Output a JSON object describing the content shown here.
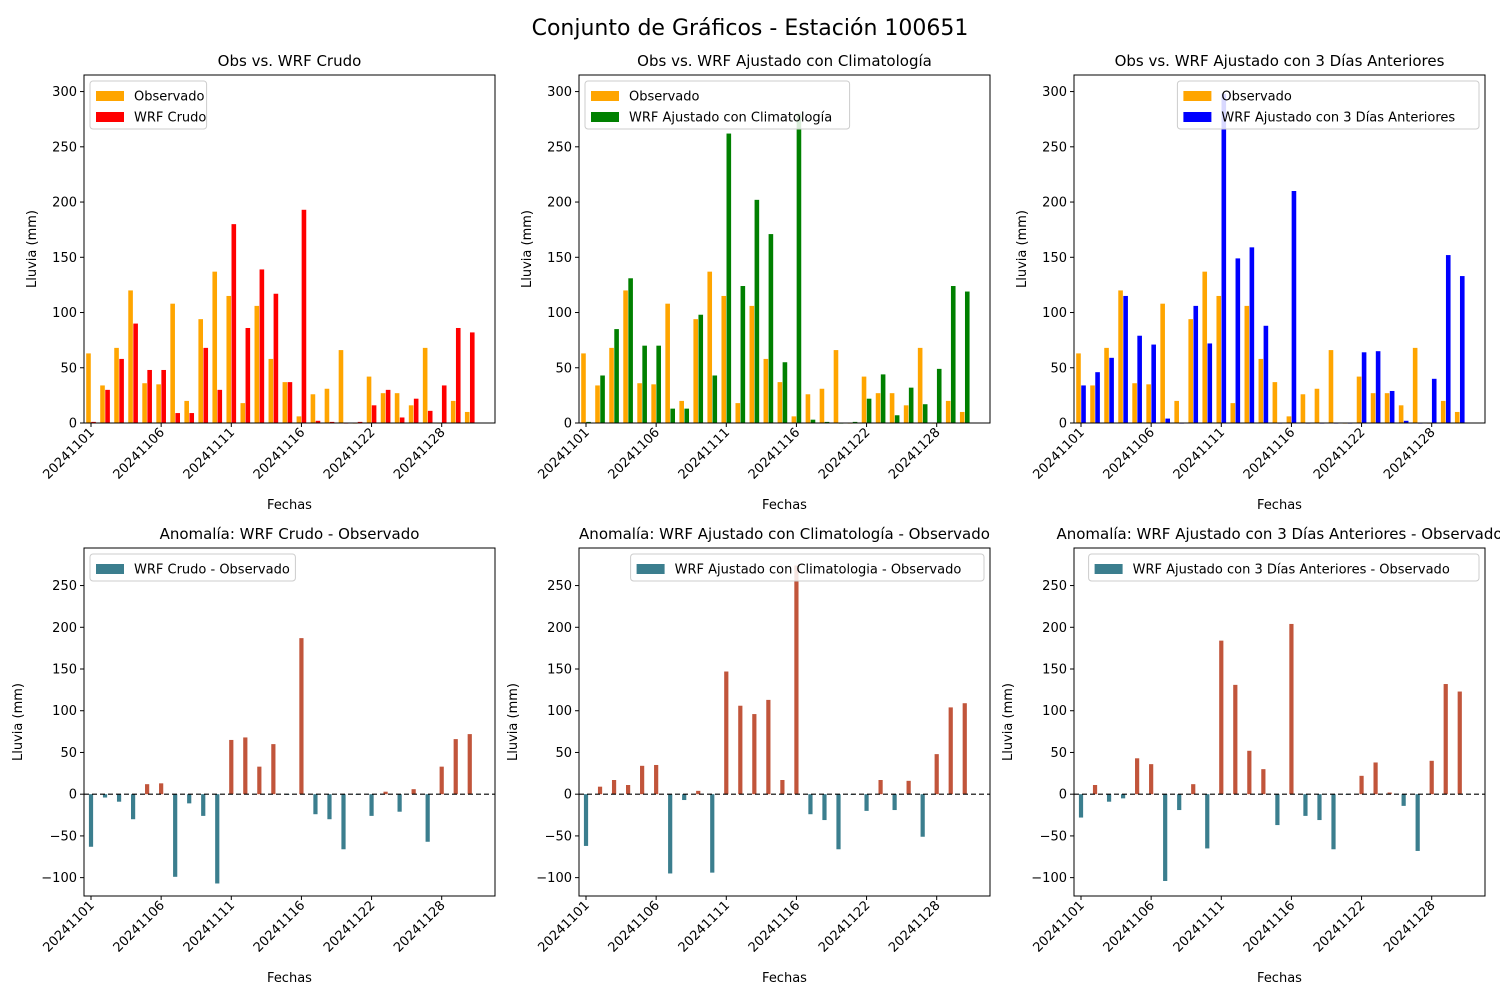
{
  "figure": {
    "title": "Conjunto de Gráficos - Estación 100651"
  },
  "chart_data": [
    {
      "type": "bar",
      "title": "Obs vs. WRF Crudo",
      "xlabel": "Fechas",
      "ylabel": "Lluvia (mm)",
      "ylim": [
        0,
        315
      ],
      "yticks": [
        0,
        50,
        100,
        150,
        200,
        250,
        300
      ],
      "x_index": [
        1,
        2,
        3,
        4,
        5,
        6,
        7,
        8,
        9,
        10,
        11,
        12,
        13,
        14,
        15,
        16,
        17,
        18,
        19,
        20,
        21,
        22,
        23,
        24,
        25,
        26,
        27,
        28,
        29,
        30
      ],
      "xtick_labels": [
        {
          "i": 1,
          "label": "20241101"
        },
        {
          "i": 6,
          "label": "20241106"
        },
        {
          "i": 11,
          "label": "20241111"
        },
        {
          "i": 16,
          "label": "20241116"
        },
        {
          "i": 21,
          "label": "20241122"
        },
        {
          "i": 26,
          "label": "20241128"
        }
      ],
      "legend": {
        "loc": "upper left"
      },
      "series": [
        {
          "name": "Observado",
          "color": "#ffa500",
          "offset": -0.18,
          "values": [
            63,
            34,
            68,
            120,
            36,
            35,
            108,
            20,
            94,
            137,
            115,
            18,
            106,
            58,
            37,
            6,
            26,
            31,
            66,
            0,
            42,
            27,
            27,
            16,
            68,
            0,
            20,
            10,
            null,
            null
          ]
        },
        {
          "name": "WRF Crudo",
          "color": "#ff0000",
          "offset": 0.18,
          "values": [
            1,
            30,
            58,
            90,
            48,
            48,
            9,
            9,
            68,
            30,
            180,
            86,
            139,
            117,
            37,
            193,
            2,
            1,
            0,
            1,
            16,
            30,
            5,
            22,
            11,
            34,
            86,
            82,
            null,
            null
          ]
        }
      ]
    },
    {
      "type": "bar",
      "title": "Obs vs. WRF Ajustado con Climatología",
      "xlabel": "Fechas",
      "ylabel": "Lluvia (mm)",
      "ylim": [
        0,
        315
      ],
      "yticks": [
        0,
        50,
        100,
        150,
        200,
        250,
        300
      ],
      "x_index": [
        1,
        2,
        3,
        4,
        5,
        6,
        7,
        8,
        9,
        10,
        11,
        12,
        13,
        14,
        15,
        16,
        17,
        18,
        19,
        20,
        21,
        22,
        23,
        24,
        25,
        26,
        27,
        28,
        29,
        30
      ],
      "xtick_labels": [
        {
          "i": 1,
          "label": "20241101"
        },
        {
          "i": 6,
          "label": "20241106"
        },
        {
          "i": 11,
          "label": "20241111"
        },
        {
          "i": 16,
          "label": "20241116"
        },
        {
          "i": 21,
          "label": "20241122"
        },
        {
          "i": 26,
          "label": "20241128"
        }
      ],
      "legend": {
        "loc": "upper left"
      },
      "series": [
        {
          "name": "Observado",
          "color": "#ffa500",
          "offset": -0.18,
          "values": [
            63,
            34,
            68,
            120,
            36,
            35,
            108,
            20,
            94,
            137,
            115,
            18,
            106,
            58,
            37,
            6,
            26,
            31,
            66,
            0,
            42,
            27,
            27,
            16,
            68,
            0,
            20,
            10,
            null,
            null
          ]
        },
        {
          "name": "WRF Ajustado con Climatología",
          "color": "#008000",
          "offset": 0.18,
          "values": [
            1,
            43,
            85,
            131,
            70,
            70,
            13,
            13,
            98,
            43,
            262,
            124,
            202,
            171,
            55,
            280,
            3,
            1,
            0,
            1,
            22,
            44,
            7,
            32,
            17,
            49,
            124,
            119,
            null,
            null
          ]
        }
      ]
    },
    {
      "type": "bar",
      "title": "Obs vs. WRF Ajustado con 3 Días Anteriores",
      "xlabel": "Fechas",
      "ylabel": "Lluvia (mm)",
      "ylim": [
        0,
        315
      ],
      "yticks": [
        0,
        50,
        100,
        150,
        200,
        250,
        300
      ],
      "x_index": [
        1,
        2,
        3,
        4,
        5,
        6,
        7,
        8,
        9,
        10,
        11,
        12,
        13,
        14,
        15,
        16,
        17,
        18,
        19,
        20,
        21,
        22,
        23,
        24,
        25,
        26,
        27,
        28,
        29,
        30
      ],
      "xtick_labels": [
        {
          "i": 1,
          "label": "20241101"
        },
        {
          "i": 6,
          "label": "20241106"
        },
        {
          "i": 11,
          "label": "20241111"
        },
        {
          "i": 16,
          "label": "20241116"
        },
        {
          "i": 21,
          "label": "20241122"
        },
        {
          "i": 26,
          "label": "20241128"
        }
      ],
      "legend": {
        "loc": "upper right"
      },
      "series": [
        {
          "name": "Observado",
          "color": "#ffa500",
          "offset": -0.18,
          "values": [
            63,
            34,
            68,
            120,
            36,
            35,
            108,
            20,
            94,
            137,
            115,
            18,
            106,
            58,
            37,
            6,
            26,
            31,
            66,
            0,
            42,
            27,
            27,
            16,
            68,
            0,
            20,
            10,
            null,
            null
          ]
        },
        {
          "name": "WRF Ajustado con 3 Días Anteriores",
          "color": "#0000ff",
          "offset": 0.18,
          "values": [
            34,
            46,
            59,
            115,
            79,
            71,
            4,
            0,
            106,
            72,
            298,
            149,
            159,
            88,
            0,
            210,
            0,
            0,
            0,
            0,
            64,
            65,
            29,
            2,
            0,
            40,
            152,
            133,
            null,
            null
          ]
        }
      ]
    },
    {
      "type": "bar",
      "title": "Anomalía: WRF Crudo - Observado",
      "xlabel": "Fechas",
      "ylabel": "Lluvia (mm)",
      "ylim": [
        -122,
        295
      ],
      "yticks": [
        -100,
        -50,
        0,
        50,
        100,
        150,
        200,
        250
      ],
      "x_index": [
        1,
        2,
        3,
        4,
        5,
        6,
        7,
        8,
        9,
        10,
        11,
        12,
        13,
        14,
        15,
        16,
        17,
        18,
        19,
        20,
        21,
        22,
        23,
        24,
        25,
        26,
        27,
        28,
        29,
        30
      ],
      "xtick_labels": [
        {
          "i": 1,
          "label": "20241101"
        },
        {
          "i": 6,
          "label": "20241106"
        },
        {
          "i": 11,
          "label": "20241111"
        },
        {
          "i": 16,
          "label": "20241116"
        },
        {
          "i": 21,
          "label": "20241122"
        },
        {
          "i": 26,
          "label": "20241128"
        }
      ],
      "legend": {
        "loc": "upper left"
      },
      "zero_line": true,
      "positive_color": "#c1553b",
      "series": [
        {
          "name": "WRF Crudo - Observado",
          "color": "#3b7e8e",
          "values": [
            -63,
            -4,
            -9,
            -30,
            12,
            13,
            -99,
            -11,
            -26,
            -107,
            65,
            68,
            33,
            60,
            0,
            187,
            -24,
            -30,
            -66,
            0,
            -26,
            3,
            -21,
            6,
            -57,
            33,
            66,
            72,
            null,
            null
          ]
        }
      ]
    },
    {
      "type": "bar",
      "title": "Anomalía: WRF Ajustado con Climatología - Observado",
      "xlabel": "Fechas",
      "ylabel": "Lluvia (mm)",
      "ylim": [
        -122,
        295
      ],
      "yticks": [
        -100,
        -50,
        0,
        50,
        100,
        150,
        200,
        250
      ],
      "x_index": [
        1,
        2,
        3,
        4,
        5,
        6,
        7,
        8,
        9,
        10,
        11,
        12,
        13,
        14,
        15,
        16,
        17,
        18,
        19,
        20,
        21,
        22,
        23,
        24,
        25,
        26,
        27,
        28,
        29,
        30
      ],
      "xtick_labels": [
        {
          "i": 1,
          "label": "20241101"
        },
        {
          "i": 6,
          "label": "20241106"
        },
        {
          "i": 11,
          "label": "20241111"
        },
        {
          "i": 16,
          "label": "20241116"
        },
        {
          "i": 21,
          "label": "20241122"
        },
        {
          "i": 26,
          "label": "20241128"
        }
      ],
      "legend": {
        "loc": "upper right"
      },
      "zero_line": true,
      "positive_color": "#c1553b",
      "series": [
        {
          "name": "WRF Ajustado con Climatologia - Observado",
          "color": "#3b7e8e",
          "values": [
            -62,
            9,
            17,
            11,
            34,
            35,
            -95,
            -7,
            4,
            -94,
            147,
            106,
            96,
            113,
            17,
            274,
            -24,
            -31,
            -66,
            0,
            -20,
            17,
            -19,
            16,
            -51,
            48,
            104,
            109,
            null,
            null
          ]
        }
      ]
    },
    {
      "type": "bar",
      "title": "Anomalía: WRF Ajustado con 3 Días Anteriores - Observado",
      "xlabel": "Fechas",
      "ylabel": "Lluvia (mm)",
      "ylim": [
        -122,
        295
      ],
      "yticks": [
        -100,
        -50,
        0,
        50,
        100,
        150,
        200,
        250
      ],
      "x_index": [
        1,
        2,
        3,
        4,
        5,
        6,
        7,
        8,
        9,
        10,
        11,
        12,
        13,
        14,
        15,
        16,
        17,
        18,
        19,
        20,
        21,
        22,
        23,
        24,
        25,
        26,
        27,
        28,
        29,
        30
      ],
      "xtick_labels": [
        {
          "i": 1,
          "label": "20241101"
        },
        {
          "i": 6,
          "label": "20241106"
        },
        {
          "i": 11,
          "label": "20241111"
        },
        {
          "i": 16,
          "label": "20241116"
        },
        {
          "i": 21,
          "label": "20241122"
        },
        {
          "i": 26,
          "label": "20241128"
        }
      ],
      "legend": {
        "loc": "upper right"
      },
      "zero_line": true,
      "positive_color": "#c1553b",
      "series": [
        {
          "name": "WRF Ajustado con 3 Días Anteriores - Observado",
          "color": "#3b7e8e",
          "values": [
            -28,
            11,
            -9,
            -5,
            43,
            36,
            -104,
            -19,
            12,
            -65,
            184,
            131,
            52,
            30,
            -37,
            204,
            -26,
            -31,
            -66,
            0,
            22,
            38,
            2,
            -14,
            -68,
            40,
            132,
            123,
            null,
            null
          ]
        }
      ]
    }
  ]
}
